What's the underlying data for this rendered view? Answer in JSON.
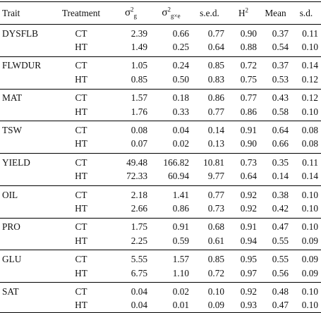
{
  "table": {
    "headers": {
      "trait": "Trait",
      "treatment": "Treatment",
      "sigma_g_symbol": "σ",
      "sigma_g_sup": "2",
      "sigma_g_sub": "g",
      "sigma_gxe_symbol": "σ",
      "sigma_gxe_sup": "2",
      "sigma_gxe_sub": "g×e",
      "sed": "s.e.d.",
      "h2_base": "H",
      "h2_sup": "2",
      "mean": "Mean",
      "sd": "s.d."
    },
    "rows": [
      {
        "trait": "DYSFLB",
        "treatment": "CT",
        "sigma_g": "2.39",
        "sigma_gxe": "0.66",
        "sed": "0.77",
        "h2": "0.90",
        "mean": "0.37",
        "sd": "0.11"
      },
      {
        "trait": "",
        "treatment": "HT",
        "sigma_g": "1.49",
        "sigma_gxe": "0.25",
        "sed": "0.64",
        "h2": "0.88",
        "mean": "0.54",
        "sd": "0.10"
      },
      {
        "trait": "FLWDUR",
        "treatment": "CT",
        "sigma_g": "1.05",
        "sigma_gxe": "0.24",
        "sed": "0.85",
        "h2": "0.72",
        "mean": "0.37",
        "sd": "0.14"
      },
      {
        "trait": "",
        "treatment": "HT",
        "sigma_g": "0.85",
        "sigma_gxe": "0.50",
        "sed": "0.83",
        "h2": "0.75",
        "mean": "0.53",
        "sd": "0.12"
      },
      {
        "trait": "MAT",
        "treatment": "CT",
        "sigma_g": "1.57",
        "sigma_gxe": "0.18",
        "sed": "0.86",
        "h2": "0.77",
        "mean": "0.43",
        "sd": "0.12"
      },
      {
        "trait": "",
        "treatment": "HT",
        "sigma_g": "1.76",
        "sigma_gxe": "0.33",
        "sed": "0.77",
        "h2": "0.86",
        "mean": "0.58",
        "sd": "0.10"
      },
      {
        "trait": "TSW",
        "treatment": "CT",
        "sigma_g": "0.08",
        "sigma_gxe": "0.04",
        "sed": "0.14",
        "h2": "0.91",
        "mean": "0.64",
        "sd": "0.08"
      },
      {
        "trait": "",
        "treatment": "HT",
        "sigma_g": "0.07",
        "sigma_gxe": "0.02",
        "sed": "0.13",
        "h2": "0.90",
        "mean": "0.66",
        "sd": "0.08"
      },
      {
        "trait": "YIELD",
        "treatment": "CT",
        "sigma_g": "49.48",
        "sigma_gxe": "166.82",
        "sed": "10.81",
        "h2": "0.73",
        "mean": "0.35",
        "sd": "0.11"
      },
      {
        "trait": "",
        "treatment": "HT",
        "sigma_g": "72.33",
        "sigma_gxe": "60.94",
        "sed": "9.77",
        "h2": "0.64",
        "mean": "0.14",
        "sd": "0.14"
      },
      {
        "trait": "OIL",
        "treatment": "CT",
        "sigma_g": "2.18",
        "sigma_gxe": "1.41",
        "sed": "0.77",
        "h2": "0.92",
        "mean": "0.38",
        "sd": "0.10"
      },
      {
        "trait": "",
        "treatment": "HT",
        "sigma_g": "2.66",
        "sigma_gxe": "0.86",
        "sed": "0.73",
        "h2": "0.92",
        "mean": "0.42",
        "sd": "0.10"
      },
      {
        "trait": "PRO",
        "treatment": "CT",
        "sigma_g": "1.75",
        "sigma_gxe": "0.91",
        "sed": "0.68",
        "h2": "0.91",
        "mean": "0.47",
        "sd": "0.10"
      },
      {
        "trait": "",
        "treatment": "HT",
        "sigma_g": "2.25",
        "sigma_gxe": "0.59",
        "sed": "0.61",
        "h2": "0.94",
        "mean": "0.55",
        "sd": "0.09"
      },
      {
        "trait": "GLU",
        "treatment": "CT",
        "sigma_g": "5.55",
        "sigma_gxe": "1.57",
        "sed": "0.85",
        "h2": "0.95",
        "mean": "0.55",
        "sd": "0.09"
      },
      {
        "trait": "",
        "treatment": "HT",
        "sigma_g": "6.75",
        "sigma_gxe": "1.10",
        "sed": "0.72",
        "h2": "0.97",
        "mean": "0.56",
        "sd": "0.09"
      },
      {
        "trait": "SAT",
        "treatment": "CT",
        "sigma_g": "0.04",
        "sigma_gxe": "0.02",
        "sed": "0.10",
        "h2": "0.92",
        "mean": "0.48",
        "sd": "0.10"
      },
      {
        "trait": "",
        "treatment": "HT",
        "sigma_g": "0.04",
        "sigma_gxe": "0.01",
        "sed": "0.09",
        "h2": "0.93",
        "mean": "0.47",
        "sd": "0.10"
      }
    ]
  }
}
